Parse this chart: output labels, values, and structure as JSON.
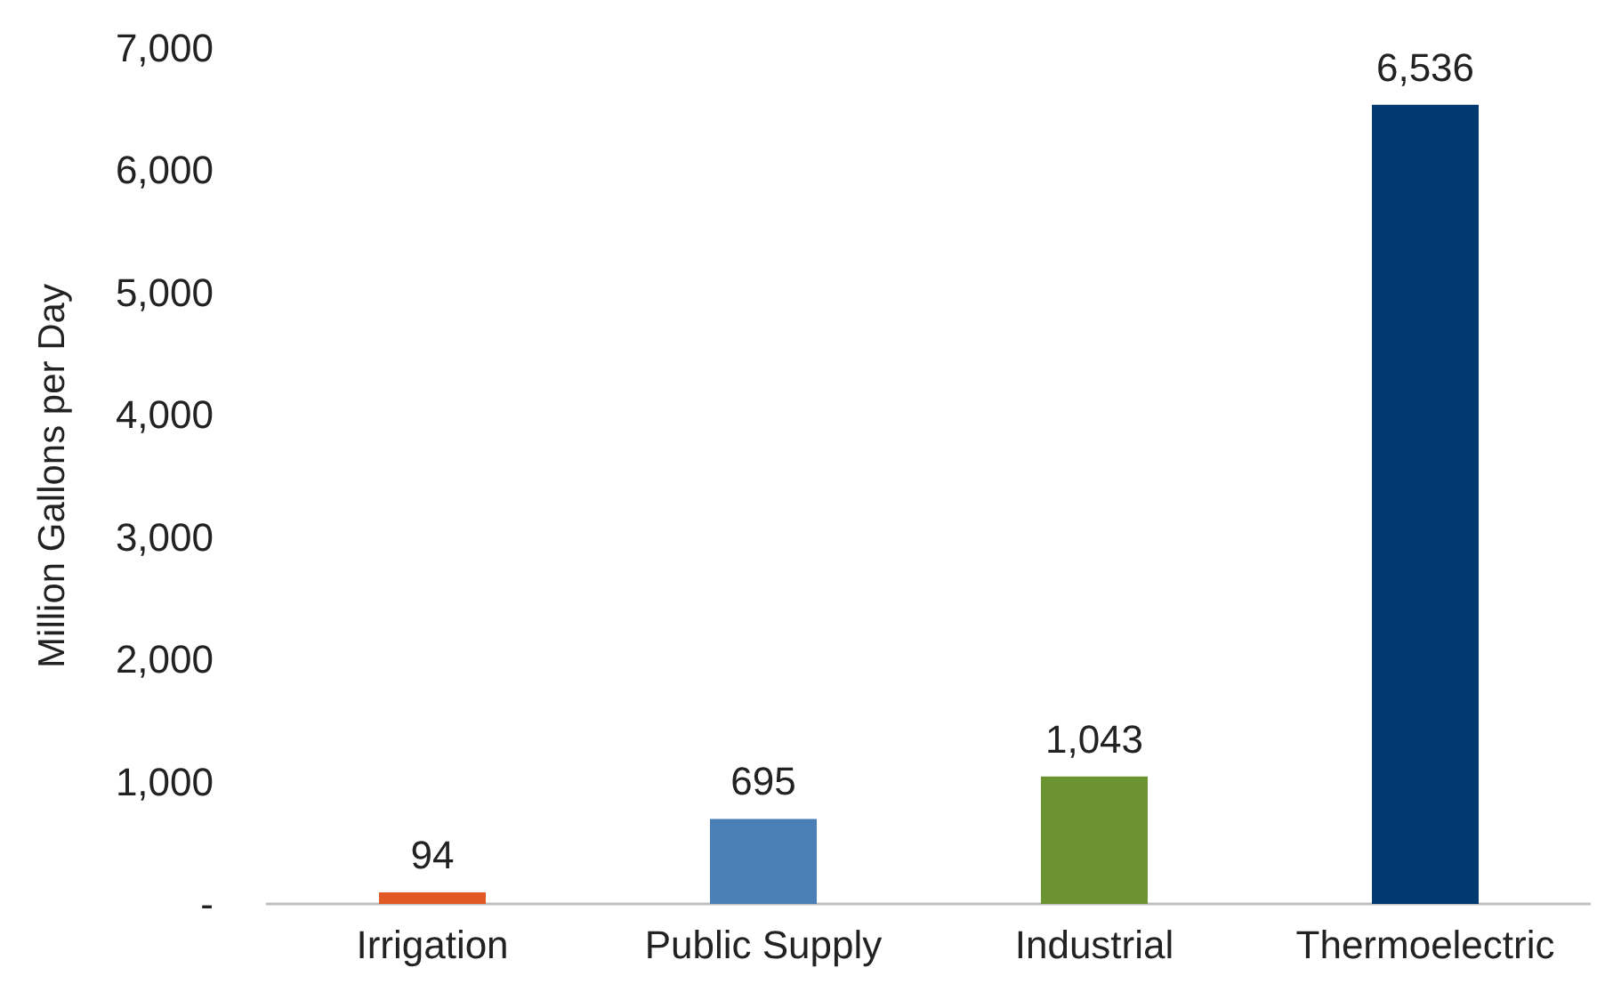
{
  "chart_data": {
    "type": "bar",
    "ylabel": "Million Gallons per Day",
    "categories": [
      "Irrigation",
      "Public Supply",
      "Industrial",
      "Thermoelectric"
    ],
    "values": [
      94,
      695,
      1043,
      6536
    ],
    "colors": [
      "#e15a26",
      "#4a7fb5",
      "#6b9430",
      "#003a70"
    ],
    "value_labels": [
      "94",
      "695",
      "1,043",
      "6,536"
    ],
    "ylim": [
      0,
      7000
    ],
    "yticks": [
      {
        "value": 0,
        "label": "-"
      },
      {
        "value": 1000,
        "label": "1,000"
      },
      {
        "value": 2000,
        "label": "2,000"
      },
      {
        "value": 3000,
        "label": "3,000"
      },
      {
        "value": 4000,
        "label": "4,000"
      },
      {
        "value": 5000,
        "label": "5,000"
      },
      {
        "value": 6000,
        "label": "6,000"
      },
      {
        "value": 7000,
        "label": "7,000"
      }
    ],
    "grid": false
  }
}
